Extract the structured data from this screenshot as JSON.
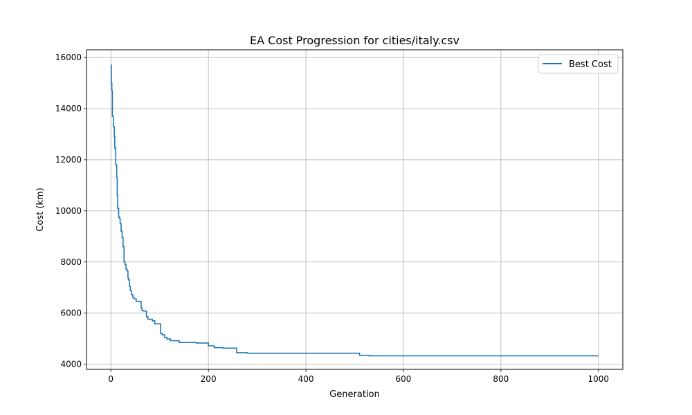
{
  "chart_data": {
    "type": "line",
    "title": "EA Cost Progression for cities/italy.csv",
    "xlabel": "Generation",
    "ylabel": "Cost (km)",
    "xlim": [
      -50,
      1050
    ],
    "ylim": [
      3800,
      16300
    ],
    "xticks": [
      0,
      200,
      400,
      600,
      800,
      1000
    ],
    "yticks": [
      4000,
      6000,
      8000,
      10000,
      12000,
      14000,
      16000
    ],
    "grid": true,
    "legend_position": "top-right",
    "series": [
      {
        "name": "Best Cost",
        "color": "#1f77b4",
        "step": true,
        "points": [
          [
            0,
            15700
          ],
          [
            1,
            15000
          ],
          [
            2,
            14700
          ],
          [
            3,
            13700
          ],
          [
            5,
            13300
          ],
          [
            7,
            12900
          ],
          [
            8,
            12450
          ],
          [
            10,
            11800
          ],
          [
            12,
            11300
          ],
          [
            13,
            10600
          ],
          [
            14,
            10100
          ],
          [
            16,
            9750
          ],
          [
            18,
            9700
          ],
          [
            19,
            9500
          ],
          [
            21,
            9200
          ],
          [
            23,
            8950
          ],
          [
            25,
            8600
          ],
          [
            27,
            8000
          ],
          [
            29,
            7900
          ],
          [
            31,
            7720
          ],
          [
            33,
            7650
          ],
          [
            35,
            7380
          ],
          [
            36,
            7300
          ],
          [
            38,
            7050
          ],
          [
            40,
            6880
          ],
          [
            42,
            6720
          ],
          [
            45,
            6600
          ],
          [
            48,
            6550
          ],
          [
            52,
            6460
          ],
          [
            62,
            6200
          ],
          [
            64,
            6100
          ],
          [
            67,
            6080
          ],
          [
            73,
            5850
          ],
          [
            76,
            5760
          ],
          [
            85,
            5700
          ],
          [
            90,
            5580
          ],
          [
            102,
            5200
          ],
          [
            105,
            5150
          ],
          [
            110,
            5050
          ],
          [
            115,
            4990
          ],
          [
            122,
            4920
          ],
          [
            140,
            4850
          ],
          [
            175,
            4830
          ],
          [
            200,
            4720
          ],
          [
            212,
            4650
          ],
          [
            230,
            4630
          ],
          [
            258,
            4450
          ],
          [
            280,
            4430
          ],
          [
            510,
            4350
          ],
          [
            530,
            4330
          ],
          [
            1000,
            4330
          ]
        ]
      }
    ]
  }
}
